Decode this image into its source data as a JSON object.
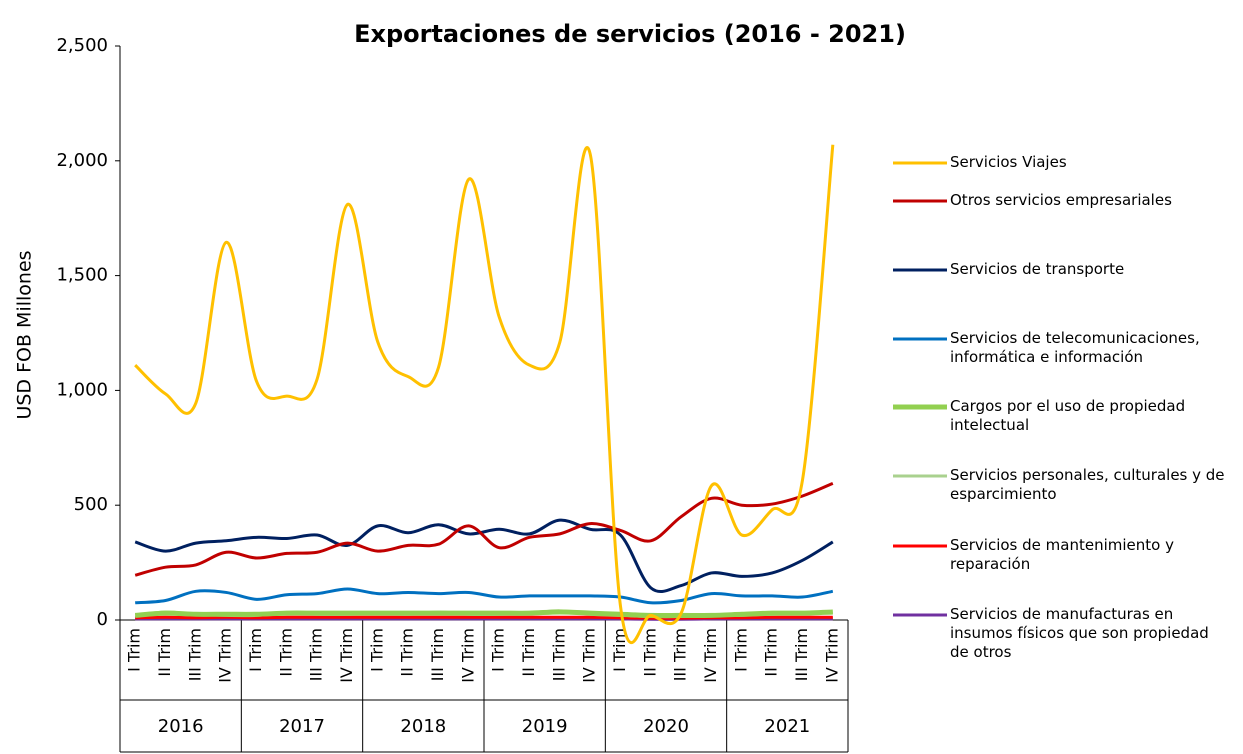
{
  "chart_data": {
    "type": "line",
    "title": "Exportaciones de servicios (2016 - 2021)",
    "y_label": "USD FOB Millones",
    "categories": [
      "I Trim",
      "II Trim",
      "III Trim",
      "IV Trim",
      "I Trim",
      "II Trim",
      "III Trim",
      "IV Trim",
      "I Trim",
      "II Trim",
      "III Trim",
      "IV Trim",
      "I Trim",
      "II Trim",
      "III Trim",
      "IV Trim",
      "I Trim",
      "II Trim",
      "III Trim",
      "IV Trim",
      "I Trim",
      "II Trim",
      "III Trim",
      "IV Trim"
    ],
    "groups": [
      "2016",
      "2017",
      "2018",
      "2019",
      "2020",
      "2021"
    ],
    "ylim": [
      0,
      2500
    ],
    "yticks": [
      0,
      500,
      {
        "value": 1000,
        "label": "1,000"
      },
      {
        "value": 1500,
        "label": "1,500"
      },
      {
        "value": 2000,
        "label": "2,000"
      },
      {
        "value": 2500,
        "label": "2,500"
      }
    ],
    "smooth": true,
    "series": [
      {
        "name": "Servicios Viajes",
        "color": "#FFC000",
        "values": [
          1110,
          985,
          945,
          1645,
          1040,
          975,
          1050,
          1810,
          1210,
          1060,
          1100,
          1920,
          1320,
          1110,
          1210,
          2030,
          60,
          20,
          30,
          585,
          370,
          480,
          610,
          2070
        ]
      },
      {
        "name": "Otros servicios empresariales",
        "color": "#C00000",
        "values": [
          195,
          230,
          240,
          295,
          270,
          290,
          295,
          335,
          300,
          325,
          330,
          410,
          315,
          360,
          375,
          420,
          390,
          345,
          450,
          530,
          500,
          505,
          540,
          595
        ]
      },
      {
        "name": "Servicios de transporte",
        "color": "#002060",
        "values": [
          340,
          300,
          335,
          345,
          360,
          355,
          370,
          325,
          410,
          380,
          415,
          375,
          395,
          375,
          435,
          395,
          370,
          140,
          150,
          205,
          190,
          205,
          260,
          340
        ]
      },
      {
        "name": "Servicios de telecomunicaciones, informática e información",
        "color": "#0070C0",
        "values": [
          75,
          85,
          125,
          120,
          90,
          110,
          115,
          135,
          115,
          120,
          115,
          120,
          100,
          105,
          105,
          105,
          100,
          75,
          85,
          115,
          105,
          105,
          100,
          125
        ]
      },
      {
        "name": "Cargos por el uso de propiedad intelectual",
        "color": "#92D050",
        "values": [
          20,
          30,
          25,
          25,
          25,
          30,
          30,
          30,
          30,
          30,
          30,
          30,
          30,
          30,
          35,
          30,
          25,
          20,
          20,
          20,
          25,
          30,
          30,
          35
        ]
      },
      {
        "name": "Servicios personales, culturales y de esparcimiento",
        "color": "#A9D18E",
        "values": [
          20,
          35,
          25,
          20,
          20,
          30,
          25,
          25,
          30,
          25,
          35,
          25,
          25,
          30,
          40,
          25,
          20,
          15,
          15,
          20,
          20,
          25,
          30,
          30
        ]
      },
      {
        "name": "Servicios de mantenimiento y reparación",
        "color": "#FF0000",
        "values": [
          10,
          12,
          10,
          12,
          10,
          12,
          12,
          12,
          12,
          12,
          12,
          12,
          12,
          12,
          12,
          12,
          10,
          8,
          8,
          10,
          10,
          12,
          12,
          12
        ]
      },
      {
        "name": "Servicios de manufacturas en insumos físicos que son propiedad de otros",
        "color": "#7030A0",
        "values": [
          5,
          5,
          5,
          5,
          5,
          5,
          5,
          5,
          5,
          5,
          5,
          5,
          5,
          5,
          5,
          5,
          5,
          3,
          3,
          5,
          5,
          5,
          5,
          5
        ]
      }
    ]
  }
}
